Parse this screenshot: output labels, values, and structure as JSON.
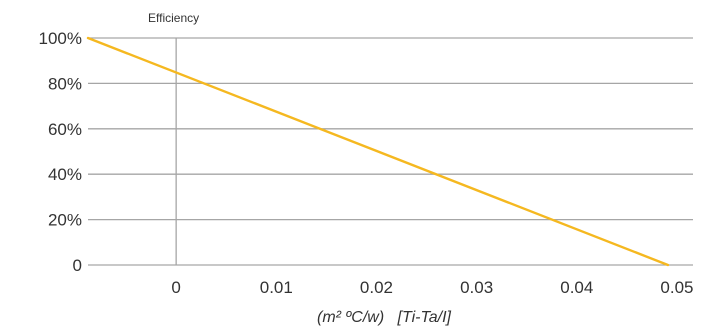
{
  "chart_data": {
    "type": "line",
    "title": "",
    "ylabel": "Efficiency",
    "xlabel": "(m² ºC/w)   [Ti-Ta/I]",
    "x_ticks": [
      "0",
      "0.01",
      "0.02",
      "0.03",
      "0.04",
      "0.05"
    ],
    "x_tick_values": [
      0,
      0.01,
      0.02,
      0.03,
      0.04,
      0.05
    ],
    "y_ticks": [
      "0",
      "20%",
      "40%",
      "60%",
      "80%",
      "100%"
    ],
    "y_tick_values": [
      0,
      20,
      40,
      60,
      80,
      100
    ],
    "xlim": [
      -0.0088,
      0.0516
    ],
    "ylim": [
      0,
      100
    ],
    "grid": "horizontal",
    "series": [
      {
        "x": [
          -0.0088,
          0.0491
        ],
        "y": [
          100,
          0
        ],
        "color": "#f5b820"
      }
    ],
    "colors": {
      "line": "#f5b820",
      "grid": "#a6a6a6",
      "axis": "#a6a6a6",
      "text": "#333333"
    }
  }
}
